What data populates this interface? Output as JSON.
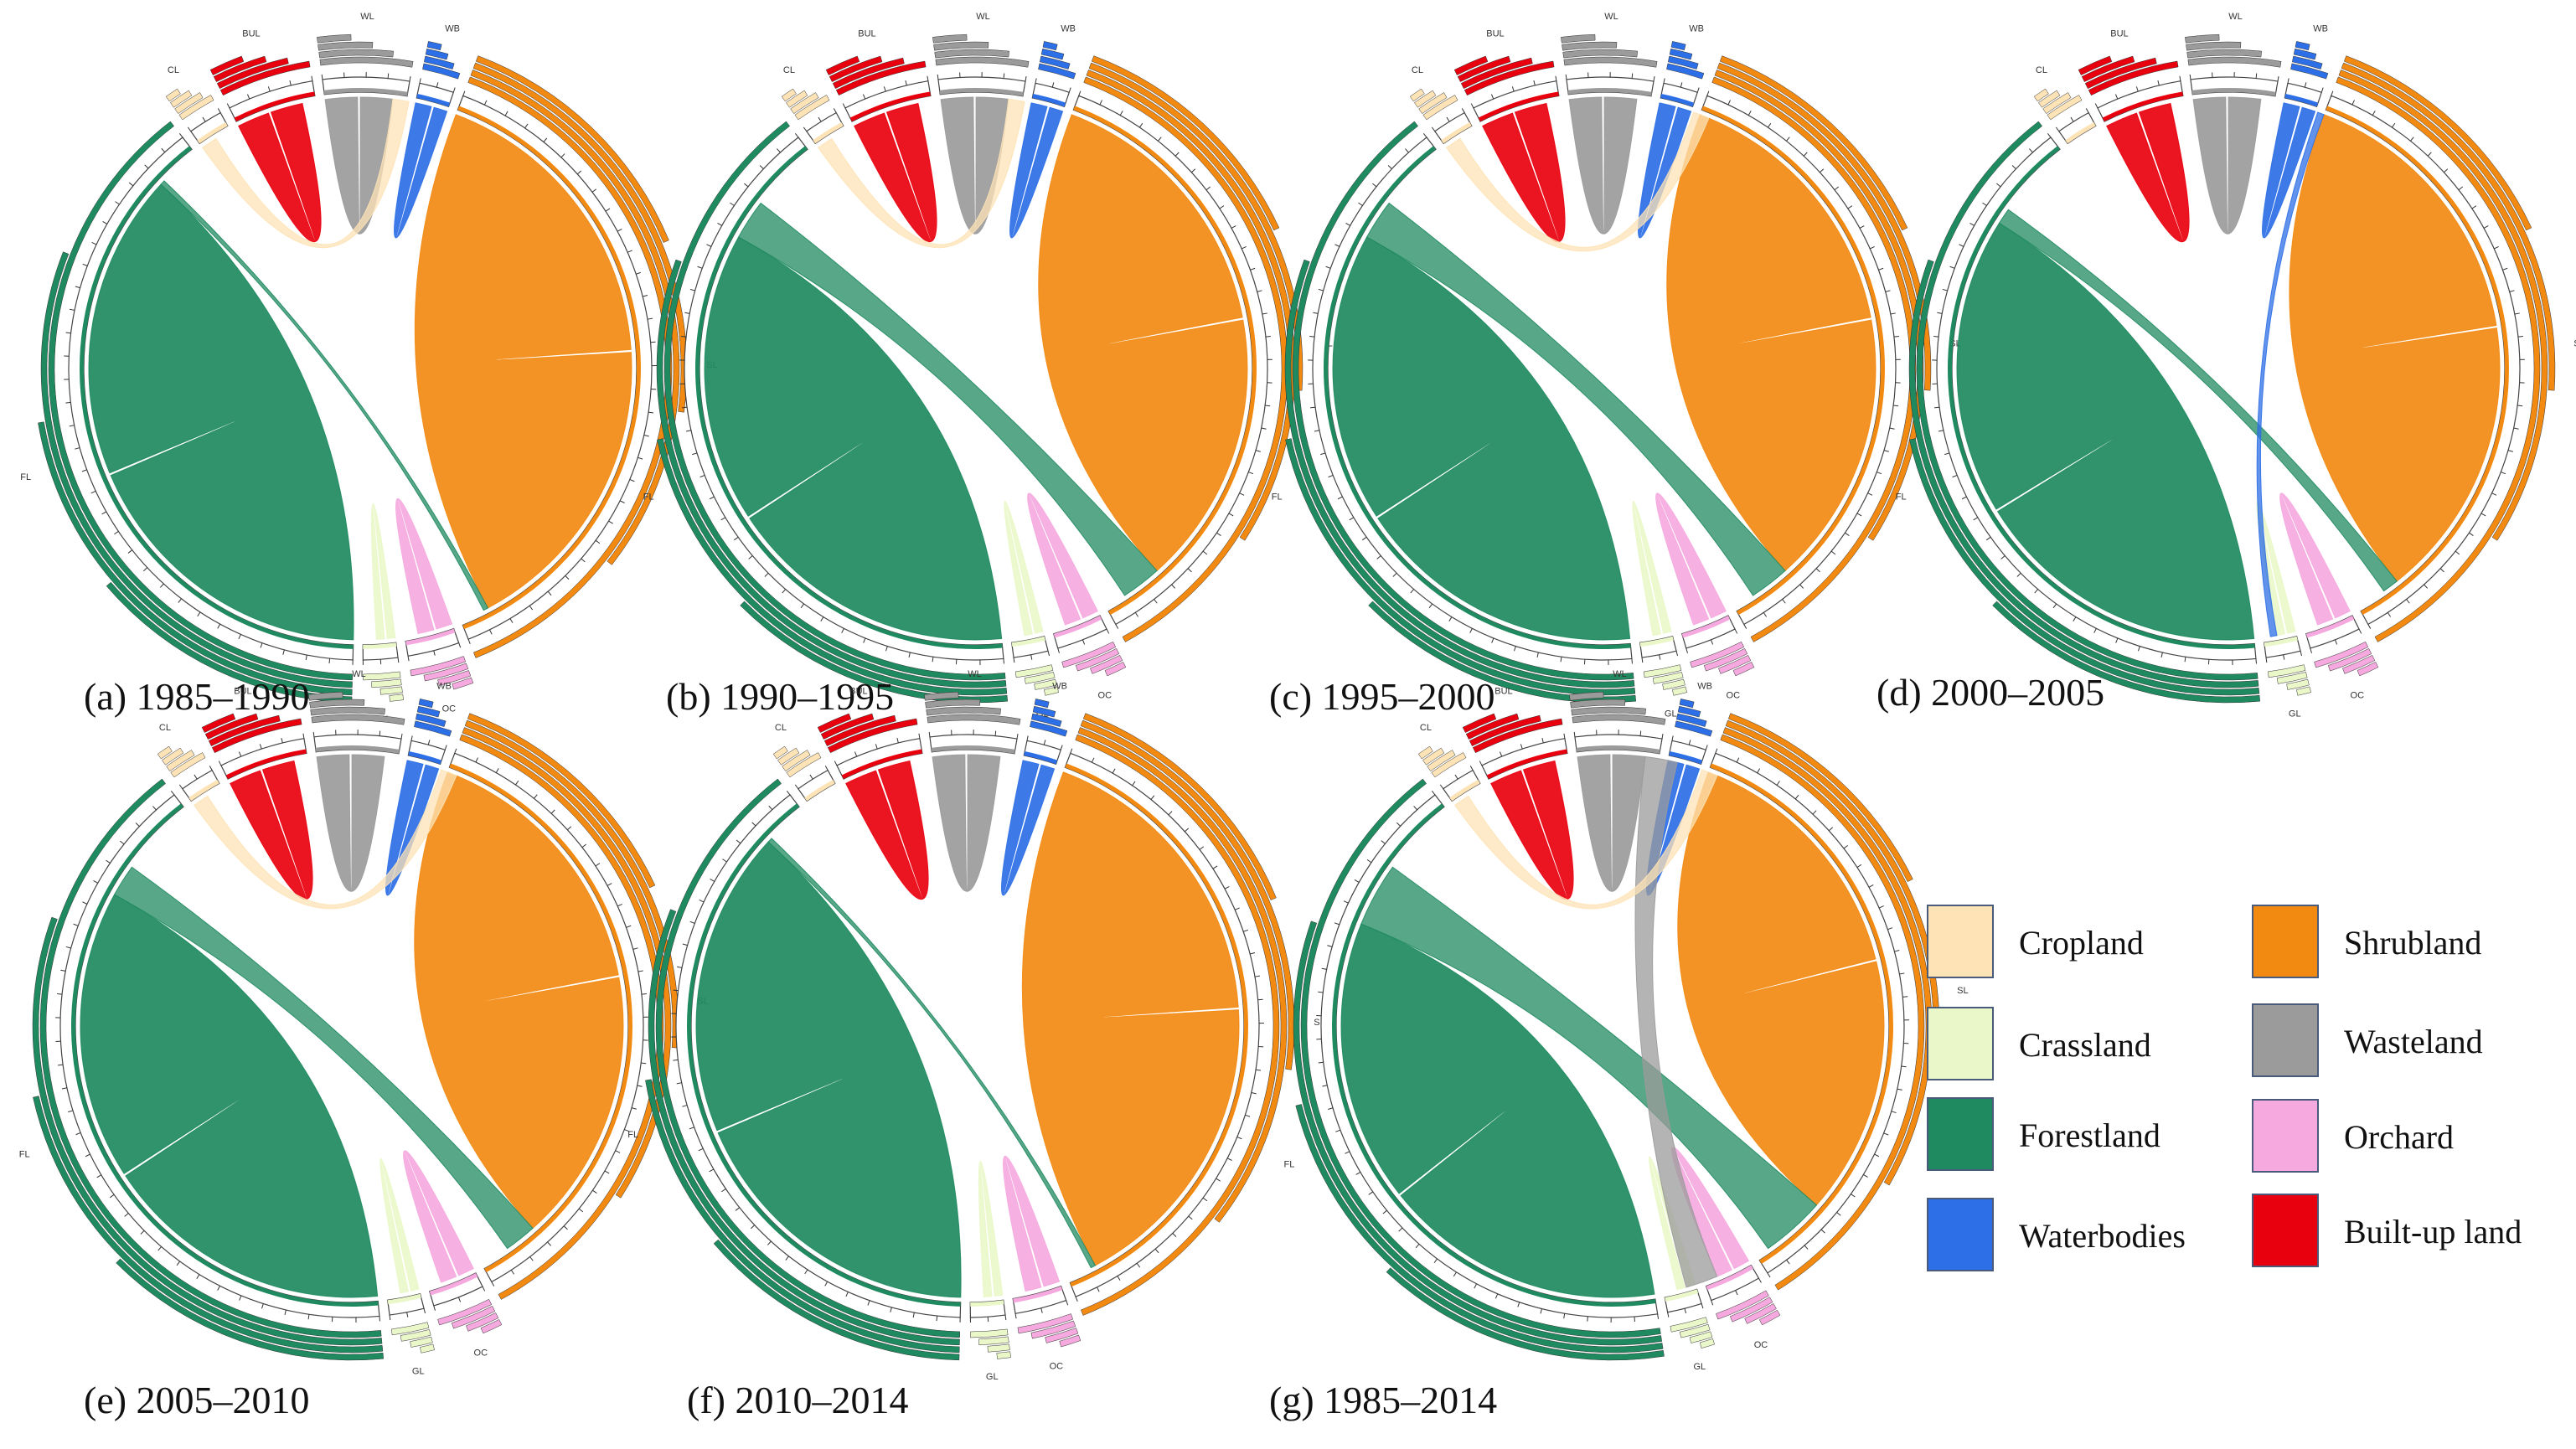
{
  "legend": {
    "items": [
      {
        "key": "CL",
        "label": "Cropland",
        "color": "#fde3b6"
      },
      {
        "key": "GL",
        "label": "Crassland",
        "color": "#eaf7c9"
      },
      {
        "key": "FL",
        "label": "Forestland",
        "color": "#1f8a60"
      },
      {
        "key": "WB",
        "label": "Waterbodies",
        "color": "#2d6fe6"
      },
      {
        "key": "SL",
        "label": "Shrubland",
        "color": "#f28a12"
      },
      {
        "key": "WL",
        "label": "Wasteland",
        "color": "#9b9b9b"
      },
      {
        "key": "OC",
        "label": "Orchard",
        "color": "#f5a9df"
      },
      {
        "key": "BL",
        "label": "Built-up land",
        "color": "#e9000e"
      }
    ]
  },
  "chart_data": [
    {
      "type": "chord",
      "caption": "(a) 1985–1990",
      "segments": [
        {
          "cls": "CL",
          "size": 2
        },
        {
          "cls": "BUL",
          "size": 5
        },
        {
          "cls": "WL",
          "size": 5
        },
        {
          "cls": "WB",
          "size": 2
        },
        {
          "cls": "SL",
          "size": 40
        },
        {
          "cls": "OC",
          "size": 3
        },
        {
          "cls": "GL",
          "size": 2
        },
        {
          "cls": "FL",
          "size": 41
        }
      ],
      "flows": [
        {
          "from": "FL",
          "to": "FL",
          "value": 38
        },
        {
          "from": "SL",
          "to": "SL",
          "value": 38
        },
        {
          "from": "BUL",
          "to": "BUL",
          "value": 4
        },
        {
          "from": "WL",
          "to": "WL",
          "value": 4
        },
        {
          "from": "WB",
          "to": "WB",
          "value": 2
        },
        {
          "from": "OC",
          "to": "OC",
          "value": 2
        },
        {
          "from": "GL",
          "to": "GL",
          "value": 1
        },
        {
          "from": "CL",
          "to": "WL",
          "value": 1
        },
        {
          "from": "FL",
          "to": "SL",
          "value": 0.3
        }
      ]
    },
    {
      "type": "chord",
      "caption": "(b) 1990–1995",
      "segments": [
        {
          "cls": "CL",
          "size": 2
        },
        {
          "cls": "BUL",
          "size": 5
        },
        {
          "cls": "WL",
          "size": 5
        },
        {
          "cls": "WB",
          "size": 2
        },
        {
          "cls": "SL",
          "size": 38
        },
        {
          "cls": "OC",
          "size": 3
        },
        {
          "cls": "GL",
          "size": 2
        },
        {
          "cls": "FL",
          "size": 43
        }
      ],
      "flows": [
        {
          "from": "FL",
          "to": "FL",
          "value": 36
        },
        {
          "from": "SL",
          "to": "SL",
          "value": 34
        },
        {
          "from": "BUL",
          "to": "BUL",
          "value": 4
        },
        {
          "from": "WL",
          "to": "WL",
          "value": 4
        },
        {
          "from": "WB",
          "to": "WB",
          "value": 2
        },
        {
          "from": "OC",
          "to": "OC",
          "value": 2
        },
        {
          "from": "GL",
          "to": "GL",
          "value": 1
        },
        {
          "from": "FL",
          "to": "SL",
          "value": 2.5
        },
        {
          "from": "CL",
          "to": "WL",
          "value": 1
        }
      ]
    },
    {
      "type": "chord",
      "caption": "(c) 1995–2000",
      "segments": [
        {
          "cls": "CL",
          "size": 2
        },
        {
          "cls": "BUL",
          "size": 5
        },
        {
          "cls": "WL",
          "size": 5
        },
        {
          "cls": "WB",
          "size": 2
        },
        {
          "cls": "SL",
          "size": 38
        },
        {
          "cls": "OC",
          "size": 3
        },
        {
          "cls": "GL",
          "size": 2
        },
        {
          "cls": "FL",
          "size": 43
        }
      ],
      "flows": [
        {
          "from": "FL",
          "to": "FL",
          "value": 36
        },
        {
          "from": "SL",
          "to": "SL",
          "value": 34
        },
        {
          "from": "BUL",
          "to": "BUL",
          "value": 4
        },
        {
          "from": "WL",
          "to": "WL",
          "value": 4
        },
        {
          "from": "WB",
          "to": "WB",
          "value": 2
        },
        {
          "from": "OC",
          "to": "OC",
          "value": 2
        },
        {
          "from": "GL",
          "to": "GL",
          "value": 1
        },
        {
          "from": "FL",
          "to": "SL",
          "value": 2.5
        },
        {
          "from": "CL",
          "to": "WB",
          "value": 1
        }
      ]
    },
    {
      "type": "chord",
      "caption": "(d) 2000–2005",
      "segments": [
        {
          "cls": "CL",
          "size": 2
        },
        {
          "cls": "BUL",
          "size": 5
        },
        {
          "cls": "WL",
          "size": 5
        },
        {
          "cls": "WB",
          "size": 2
        },
        {
          "cls": "SL",
          "size": 38
        },
        {
          "cls": "OC",
          "size": 3
        },
        {
          "cls": "GL",
          "size": 2
        },
        {
          "cls": "FL",
          "size": 43
        }
      ],
      "flows": [
        {
          "from": "FL",
          "to": "FL",
          "value": 37
        },
        {
          "from": "SL",
          "to": "SL",
          "value": 35
        },
        {
          "from": "BUL",
          "to": "BUL",
          "value": 4
        },
        {
          "from": "WL",
          "to": "WL",
          "value": 4
        },
        {
          "from": "WB",
          "to": "WB",
          "value": 2
        },
        {
          "from": "OC",
          "to": "OC",
          "value": 2
        },
        {
          "from": "GL",
          "to": "GL",
          "value": 1
        },
        {
          "from": "FL",
          "to": "SL",
          "value": 1
        },
        {
          "from": "WB",
          "to": "GL",
          "value": 0.4
        }
      ]
    },
    {
      "type": "chord",
      "caption": "(e) 2005–2010",
      "segments": [
        {
          "cls": "CL",
          "size": 2
        },
        {
          "cls": "BUL",
          "size": 5
        },
        {
          "cls": "WL",
          "size": 5
        },
        {
          "cls": "WB",
          "size": 2
        },
        {
          "cls": "SL",
          "size": 38
        },
        {
          "cls": "OC",
          "size": 3
        },
        {
          "cls": "GL",
          "size": 2
        },
        {
          "cls": "FL",
          "size": 43
        }
      ],
      "flows": [
        {
          "from": "FL",
          "to": "FL",
          "value": 36
        },
        {
          "from": "SL",
          "to": "SL",
          "value": 34
        },
        {
          "from": "BUL",
          "to": "BUL",
          "value": 4
        },
        {
          "from": "WL",
          "to": "WL",
          "value": 4
        },
        {
          "from": "WB",
          "to": "WB",
          "value": 2
        },
        {
          "from": "OC",
          "to": "OC",
          "value": 2
        },
        {
          "from": "GL",
          "to": "GL",
          "value": 1
        },
        {
          "from": "FL",
          "to": "SL",
          "value": 2
        },
        {
          "from": "CL",
          "to": "WB",
          "value": 1
        }
      ]
    },
    {
      "type": "chord",
      "caption": "(f) 2010–2014",
      "segments": [
        {
          "cls": "CL",
          "size": 2
        },
        {
          "cls": "BUL",
          "size": 5
        },
        {
          "cls": "WL",
          "size": 5
        },
        {
          "cls": "WB",
          "size": 2
        },
        {
          "cls": "SL",
          "size": 40
        },
        {
          "cls": "OC",
          "size": 3
        },
        {
          "cls": "GL",
          "size": 2
        },
        {
          "cls": "FL",
          "size": 41
        }
      ],
      "flows": [
        {
          "from": "FL",
          "to": "FL",
          "value": 38
        },
        {
          "from": "SL",
          "to": "SL",
          "value": 38
        },
        {
          "from": "BUL",
          "to": "BUL",
          "value": 4
        },
        {
          "from": "WL",
          "to": "WL",
          "value": 4
        },
        {
          "from": "WB",
          "to": "WB",
          "value": 2
        },
        {
          "from": "OC",
          "to": "OC",
          "value": 2
        },
        {
          "from": "GL",
          "to": "GL",
          "value": 1
        },
        {
          "from": "FL",
          "to": "SL",
          "value": 0.3
        }
      ]
    },
    {
      "type": "chord",
      "caption": "(g) 1985–2014",
      "segments": [
        {
          "cls": "CL",
          "size": 2
        },
        {
          "cls": "BUL",
          "size": 5
        },
        {
          "cls": "WL",
          "size": 5
        },
        {
          "cls": "WB",
          "size": 2
        },
        {
          "cls": "SL",
          "size": 37
        },
        {
          "cls": "OC",
          "size": 3
        },
        {
          "cls": "GL",
          "size": 2
        },
        {
          "cls": "FL",
          "size": 44
        }
      ],
      "flows": [
        {
          "from": "FL",
          "to": "FL",
          "value": 35
        },
        {
          "from": "SL",
          "to": "SL",
          "value": 32
        },
        {
          "from": "BUL",
          "to": "BUL",
          "value": 4
        },
        {
          "from": "WL",
          "to": "WL",
          "value": 4
        },
        {
          "from": "WB",
          "to": "WB",
          "value": 2
        },
        {
          "from": "OC",
          "to": "OC",
          "value": 2
        },
        {
          "from": "GL",
          "to": "GL",
          "value": 1
        },
        {
          "from": "FL",
          "to": "SL",
          "value": 4
        },
        {
          "from": "WL",
          "to": "OC",
          "value": 2
        },
        {
          "from": "CL",
          "to": "WB",
          "value": 1
        }
      ]
    }
  ]
}
